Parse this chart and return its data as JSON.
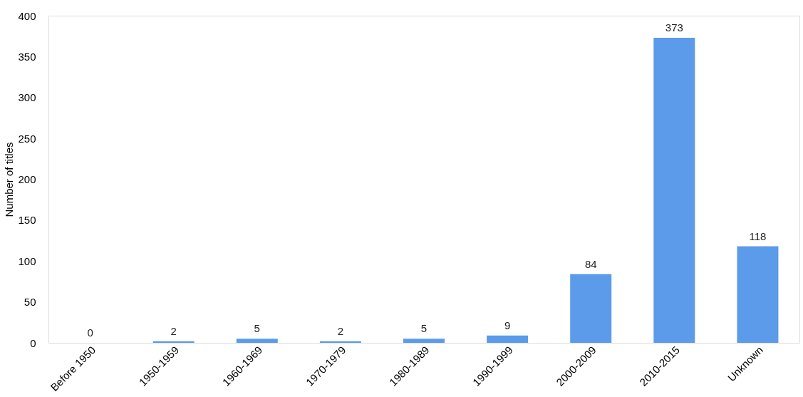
{
  "chart_data": {
    "type": "bar",
    "ylabel": "Number of titles",
    "categories": [
      "Before 1950",
      "1950-1959",
      "1960-1969",
      "1970-1979",
      "1980-1989",
      "1990-1999",
      "2000-2009",
      "2010-2015",
      "Unknown"
    ],
    "values": [
      0,
      2,
      5,
      2,
      5,
      9,
      84,
      373,
      118
    ],
    "color": "#5b9bea",
    "ylim": [
      0,
      400
    ],
    "yticks": [
      0,
      50,
      100,
      150,
      200,
      250,
      300,
      350,
      400
    ],
    "grid": false,
    "data_labels": true
  }
}
